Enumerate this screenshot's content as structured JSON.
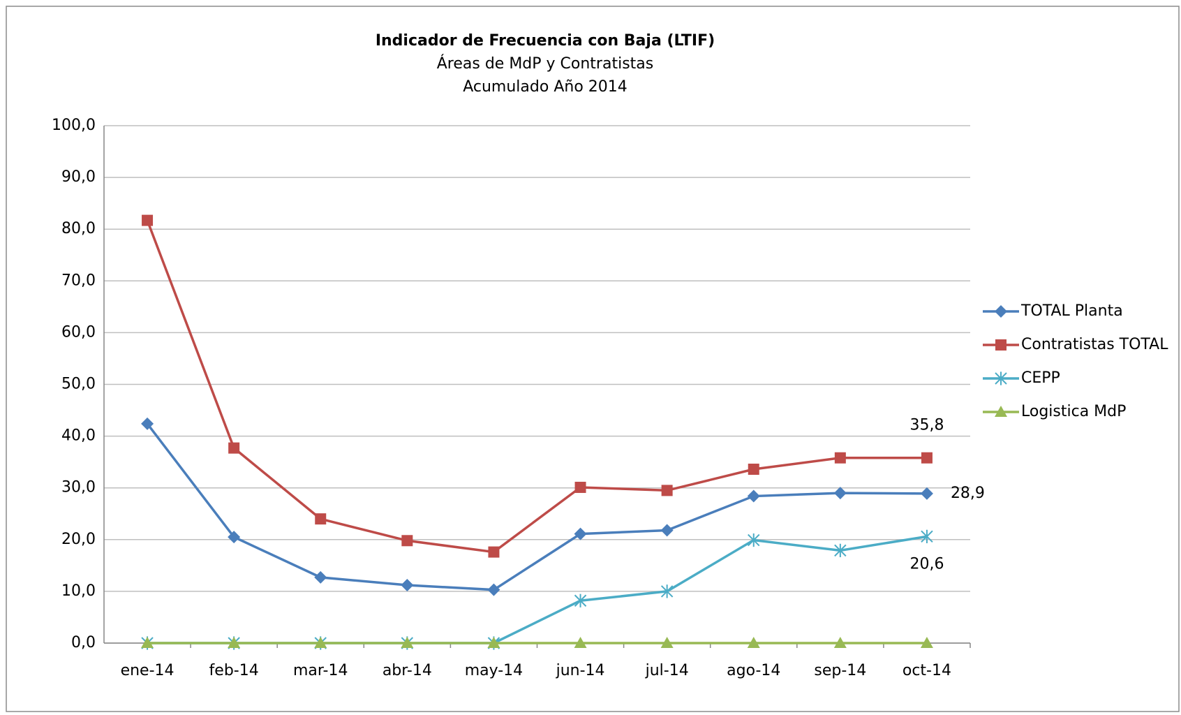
{
  "chart_data": {
    "type": "line",
    "title": "Indicador de Frecuencia con Baja (LTIF)",
    "subtitle": [
      "Áreas de MdP y Contratistas",
      "Acumulado Año 2014"
    ],
    "categories": [
      "ene-14",
      "feb-14",
      "mar-14",
      "abr-14",
      "may-14",
      "jun-14",
      "jul-14",
      "ago-14",
      "sep-14",
      "oct-14"
    ],
    "series": [
      {
        "name": "TOTAL Planta",
        "color": "#4a7ebb",
        "marker": "diamond",
        "values": [
          42.4,
          20.5,
          12.7,
          11.2,
          10.3,
          21.1,
          21.8,
          28.4,
          29.0,
          28.9
        ],
        "value_labels": [
          null,
          null,
          null,
          null,
          null,
          null,
          null,
          null,
          null,
          "28,9"
        ]
      },
      {
        "name": "Contratistas TOTAL",
        "color": "#be4b48",
        "marker": "square",
        "values": [
          81.7,
          37.7,
          24.0,
          19.8,
          17.6,
          30.1,
          29.5,
          33.6,
          35.8,
          35.8
        ],
        "value_labels": [
          null,
          null,
          null,
          null,
          null,
          null,
          null,
          null,
          null,
          "35,8"
        ]
      },
      {
        "name": "CEPP",
        "color": "#4bacc6",
        "marker": "star",
        "values": [
          0,
          0,
          0,
          0,
          0,
          8.2,
          10.0,
          19.9,
          17.9,
          20.6
        ],
        "value_labels": [
          null,
          null,
          null,
          null,
          null,
          null,
          null,
          null,
          null,
          "20,6"
        ]
      },
      {
        "name": "Logistica MdP",
        "color": "#98b954",
        "marker": "triangle",
        "values": [
          0,
          0,
          0,
          0,
          0,
          0,
          0,
          0,
          0,
          0
        ]
      }
    ],
    "ylim": [
      0,
      100
    ],
    "yticks": [
      {
        "value": 0,
        "label": "0,0"
      },
      {
        "value": 10,
        "label": "10,0"
      },
      {
        "value": 20,
        "label": "20,0"
      },
      {
        "value": 30,
        "label": "30,0"
      },
      {
        "value": 40,
        "label": "40,0"
      },
      {
        "value": 50,
        "label": "50,0"
      },
      {
        "value": 60,
        "label": "60,0"
      },
      {
        "value": 70,
        "label": "70,0"
      },
      {
        "value": 80,
        "label": "80,0"
      },
      {
        "value": 90,
        "label": "90,0"
      },
      {
        "value": 100,
        "label": "100,0"
      }
    ],
    "grid": true,
    "legend": "right"
  }
}
